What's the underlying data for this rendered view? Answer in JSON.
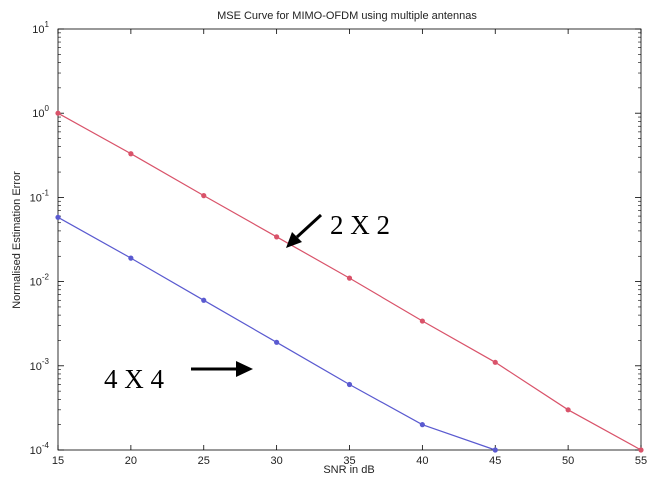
{
  "chart_data": {
    "type": "line",
    "title": "MSE Curve for MIMO-OFDM using multiple antennas",
    "xlabel": "SNR in dB",
    "ylabel": "Normalised Estimation Error",
    "xlim": [
      15,
      55
    ],
    "ylim": [
      0.0001,
      10
    ],
    "yscale": "log",
    "grid": false,
    "x_ticks": [
      "15",
      "20",
      "25",
      "30",
      "35",
      "40",
      "45",
      "50",
      "55"
    ],
    "y_ticks": [
      {
        "base": "10",
        "exp": "-4"
      },
      {
        "base": "10",
        "exp": "-3"
      },
      {
        "base": "10",
        "exp": "-2"
      },
      {
        "base": "10",
        "exp": "-1"
      },
      {
        "base": "10",
        "exp": "0"
      },
      {
        "base": "10",
        "exp": "1"
      }
    ],
    "series": [
      {
        "color": "#d9536a",
        "x": [
          15,
          20,
          25,
          30,
          35,
          40,
          45,
          50,
          55
        ],
        "y": [
          1.0,
          0.33,
          0.105,
          0.034,
          0.011,
          0.0034,
          0.0011,
          0.0003,
          0.0001
        ]
      },
      {
        "color": "#5a5ad0",
        "x": [
          15,
          20,
          25,
          30,
          35,
          40,
          45
        ],
        "y": [
          0.058,
          0.019,
          0.006,
          0.0019,
          0.0006,
          0.0002,
          0.0001
        ]
      }
    ],
    "annotations": [
      {
        "text": "2 X 2",
        "arrow": "down-left"
      },
      {
        "text": "4 X 4",
        "arrow": "right"
      }
    ]
  }
}
